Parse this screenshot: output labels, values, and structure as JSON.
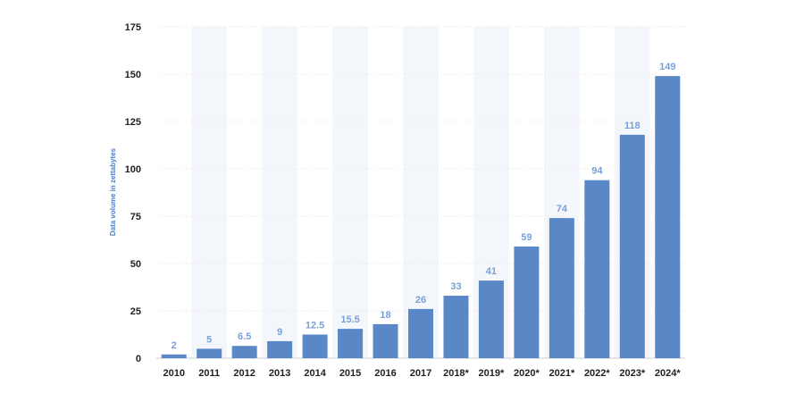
{
  "chart_data": {
    "type": "bar",
    "title": "",
    "xlabel": "",
    "ylabel": "Data volume in zettabytes",
    "categories": [
      "2010",
      "2011",
      "2012",
      "2013",
      "2014",
      "2015",
      "2016",
      "2017",
      "2018*",
      "2019*",
      "2020*",
      "2021*",
      "2022*",
      "2023*",
      "2024*"
    ],
    "values": [
      2,
      5,
      6.5,
      9,
      12.5,
      15.5,
      18,
      26,
      33,
      41,
      59,
      74,
      94,
      118,
      149
    ],
    "value_labels": [
      "2",
      "5",
      "6.5",
      "9",
      "12.5",
      "15.5",
      "18",
      "26",
      "33",
      "41",
      "59",
      "74",
      "94",
      "118",
      "149"
    ],
    "ylim": [
      0,
      175
    ],
    "yticks": [
      0,
      25,
      50,
      75,
      100,
      125,
      150,
      175
    ],
    "grid": true,
    "alternating_column_shading": true,
    "colors": {
      "bar": "#5a87c6",
      "data_label": "#7aa0d8",
      "axis_label": "#4a7fcb",
      "shade": "#f3f6fa",
      "grid": "#e6e6e6"
    }
  }
}
